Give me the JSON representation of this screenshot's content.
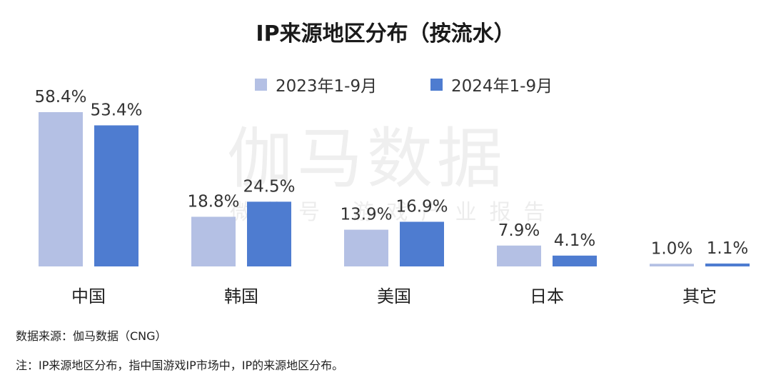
{
  "chart_data": {
    "type": "bar",
    "title": "IP来源地区分布（按流水）",
    "categories": [
      "中国",
      "韩国",
      "美国",
      "日本",
      "其它"
    ],
    "series": [
      {
        "name": "2023年1-9月",
        "values": [
          58.4,
          18.8,
          13.9,
          7.9,
          1.0
        ],
        "labels": [
          "58.4%",
          "18.8%",
          "13.9%",
          "7.9%",
          "1.0%"
        ],
        "color": "#b4c0e4"
      },
      {
        "name": "2024年1-9月",
        "values": [
          53.4,
          24.5,
          16.9,
          4.1,
          1.1
        ],
        "labels": [
          "53.4%",
          "24.5%",
          "16.9%",
          "4.1%",
          "1.1%"
        ],
        "color": "#4e7cd0"
      }
    ],
    "unit": "%",
    "ylim": [
      0,
      60
    ],
    "grid": false,
    "legend_position": "top-center"
  },
  "watermark": {
    "main": "伽马数据",
    "sub": "微信号 游戏产业报告"
  },
  "footer": {
    "source": "数据来源：伽马数据（CNG）",
    "note": "注：IP来源地区分布，指中国游戏IP市场中，IP的来源地区分布。"
  }
}
